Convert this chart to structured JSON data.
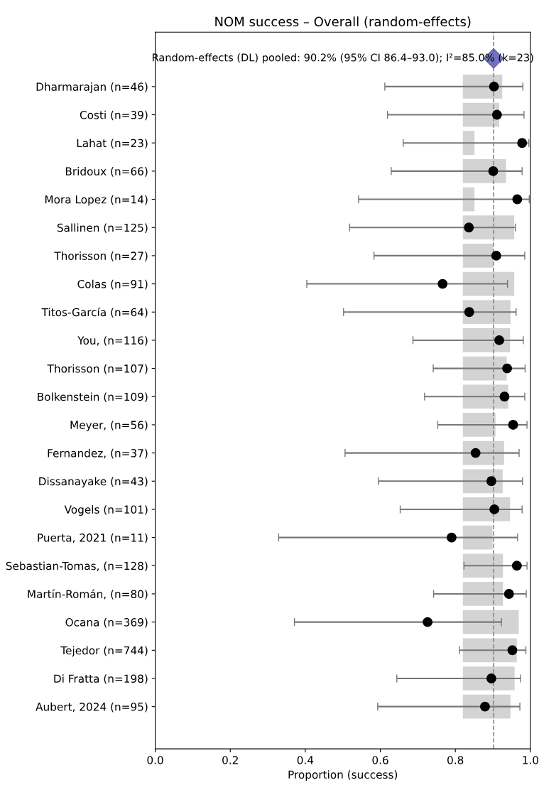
{
  "chart_data": {
    "type": "scatter",
    "orientation": "horizontal",
    "title": "NOM success – Overall (random-effects)",
    "xlabel": "Proportion (success)",
    "categories": [
      null,
      "Dharmarajan (n=46)",
      "Costi (n=39)",
      "Lahat (n=23)",
      "Bridoux (n=66)",
      "Mora Lopez (n=14)",
      "Sallinen (n=125)",
      "Thorisson (n=27)",
      "Colas (n=91)",
      "Titos-García (n=64)",
      "You, (n=116)",
      "Thorisson (n=107)",
      "Bolkenstein (n=109)",
      "Meyer, (n=56)",
      "Fernandez, (n=37)",
      "Dissanayake (n=43)",
      "Vogels (n=101)",
      "Puerta, 2021 (n=11)",
      "Sebastian-Tomas, (n=128)",
      "Martín-Román, (n=80)",
      "Ocana (n=369)",
      "Tejedor (n=744)",
      "Di Fratta (n=198)",
      "Aubert, 2024 (n=95)"
    ],
    "series": [
      {
        "type": "bar",
        "color": "#d3d3d3",
        "base": [
          null,
          0.82,
          0.82,
          0.82,
          0.82,
          0.82,
          0.82,
          0.82,
          0.82,
          0.82,
          0.82,
          0.82,
          0.82,
          0.82,
          0.82,
          0.82,
          0.82,
          0.82,
          0.82,
          0.82,
          0.82,
          0.82,
          0.82,
          0.82
        ],
        "values": [
          null,
          0.105,
          0.097,
          0.031,
          0.115,
          0.031,
          0.137,
          0.08,
          0.137,
          0.127,
          0.126,
          0.117,
          0.121,
          0.087,
          0.11,
          0.106,
          0.126,
          0.079,
          0.107,
          0.107,
          0.149,
          0.144,
          0.138,
          0.127
        ]
      },
      {
        "color": "#000000",
        "marker": "circle",
        "values": [
          null,
          0.903,
          0.911,
          0.978,
          0.901,
          0.965,
          0.836,
          0.909,
          0.766,
          0.837,
          0.917,
          0.938,
          0.931,
          0.954,
          0.854,
          0.896,
          0.904,
          0.79,
          0.964,
          0.943,
          0.726,
          0.952,
          0.896,
          0.879
        ],
        "errors": [
          null,
          [
            0.612,
            0.98
          ],
          [
            0.619,
            0.983
          ],
          [
            0.661,
            0.996
          ],
          [
            0.629,
            0.978
          ],
          [
            0.542,
            0.997
          ],
          [
            0.518,
            0.96
          ],
          [
            0.583,
            0.985
          ],
          [
            0.404,
            0.939
          ],
          [
            0.502,
            0.962
          ],
          [
            0.687,
            0.981
          ],
          [
            0.741,
            0.986
          ],
          [
            0.718,
            0.985
          ],
          [
            0.753,
            0.991
          ],
          [
            0.506,
            0.97
          ],
          [
            0.595,
            0.979
          ],
          [
            0.653,
            0.978
          ],
          [
            0.329,
            0.966
          ],
          [
            0.823,
            0.991
          ],
          [
            0.742,
            0.989
          ],
          [
            0.371,
            0.923
          ],
          [
            0.811,
            0.988
          ],
          [
            0.644,
            0.974
          ],
          [
            0.593,
            0.972
          ]
        ]
      },
      {
        "color": "#5a5ab4",
        "marker": "diamond",
        "values": [
          0.902,
          null,
          null,
          null,
          null,
          null,
          null,
          null,
          null,
          null,
          null,
          null,
          null,
          null,
          null,
          null,
          null,
          null,
          null,
          null,
          null,
          null,
          null,
          null
        ]
      }
    ],
    "ref_lines": [
      {
        "axis": "x",
        "value": 0.902,
        "color": "#7f7fdf",
        "line_style": "dashed"
      }
    ],
    "annotations": [
      "Random-effects (DL) pooled: 90.2% (95% CI 86.4–93.0); I²=85.0% (k=23)"
    ],
    "xlim": [
      0.0,
      1.0
    ],
    "xticks": [
      {
        "value": 0,
        "label": "0.0"
      },
      0.2,
      0.4,
      0.6,
      0.8,
      {
        "value": 1,
        "label": "1.0"
      }
    ],
    "grid": false,
    "legend": false
  }
}
